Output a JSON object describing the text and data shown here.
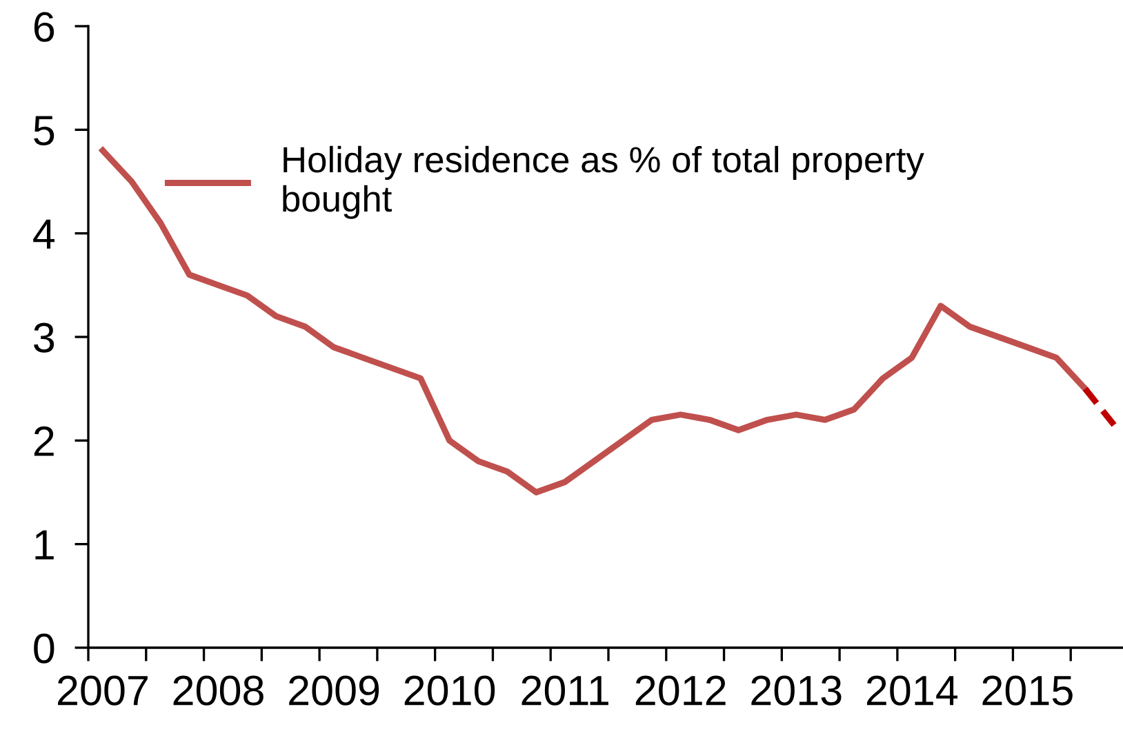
{
  "chart_data": {
    "type": "line",
    "categories": [
      "2007",
      null,
      null,
      null,
      "2008",
      null,
      null,
      null,
      "2009",
      null,
      null,
      null,
      "2010",
      null,
      null,
      null,
      "2011",
      null,
      null,
      null,
      "2012",
      null,
      null,
      null,
      "2013",
      null,
      null,
      null,
      "2014",
      null,
      null,
      null,
      "2015",
      null,
      null,
      null
    ],
    "series": [
      {
        "name": "Holiday residence as % of total property\nbought",
        "color": "#c0504d",
        "values": [
          4.8,
          4.5,
          4.1,
          3.6,
          3.5,
          3.4,
          3.2,
          3.1,
          2.9,
          2.8,
          2.7,
          2.6,
          2.0,
          1.8,
          1.7,
          1.5,
          1.6,
          1.8,
          2.0,
          2.2,
          2.25,
          2.2,
          2.1,
          2.2,
          2.25,
          2.2,
          2.3,
          2.6,
          2.8,
          3.3,
          3.1,
          3.0,
          2.9,
          2.8,
          2.5,
          null
        ]
      },
      {
        "color": "#c00000",
        "line_style": "dashed",
        "values": [
          null,
          null,
          null,
          null,
          null,
          null,
          null,
          null,
          null,
          null,
          null,
          null,
          null,
          null,
          null,
          null,
          null,
          null,
          null,
          null,
          null,
          null,
          null,
          null,
          null,
          null,
          null,
          null,
          null,
          null,
          null,
          null,
          null,
          null,
          2.5,
          2.15
        ]
      }
    ],
    "ylim": [
      0,
      6
    ],
    "yticks": [
      0,
      1,
      2,
      3,
      4,
      5,
      6
    ],
    "grid": false,
    "legend": "top left",
    "marker": "none"
  }
}
